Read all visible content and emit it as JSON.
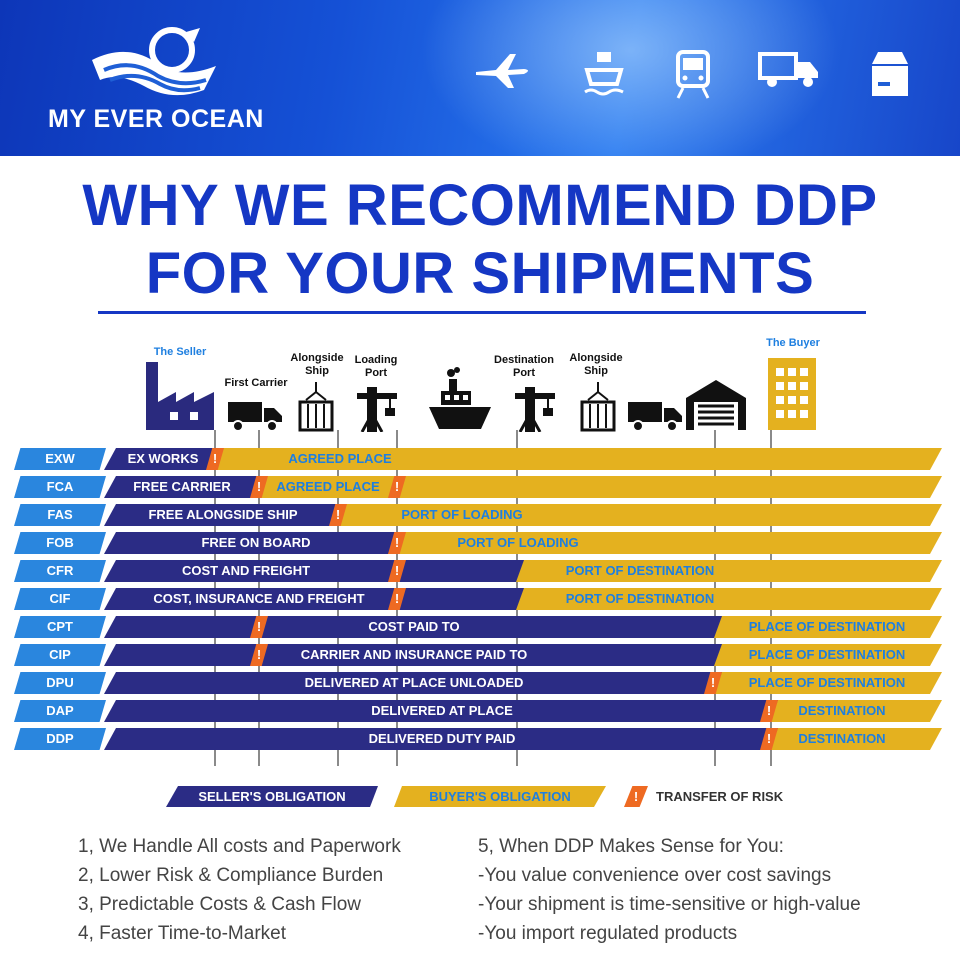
{
  "brand": {
    "name": "MY EVER OCEAN"
  },
  "header_icons": [
    "airplane-icon",
    "ship-icon",
    "train-icon",
    "truck-icon",
    "package-icon"
  ],
  "title": {
    "line1": "WHY WE RECOMMEND DDP",
    "line2": "FOR YOUR SHIPMENTS"
  },
  "stages": {
    "seller": "The Seller",
    "first_carrier": "First Carrier",
    "alongside_ship_1": "Alongside Ship",
    "loading_port": "Loading Port",
    "destination_port": "Destination Port",
    "alongside_ship_2": "Alongside Ship",
    "buyer": "The Buyer"
  },
  "rows": [
    {
      "code": "EXW",
      "seller_text": "EX WORKS",
      "buyer_text": "AGREED PLACE"
    },
    {
      "code": "FCA",
      "seller_text": "FREE CARRIER",
      "buyer_text": "AGREED PLACE"
    },
    {
      "code": "FAS",
      "seller_text": "FREE ALONGSIDE SHIP",
      "buyer_text": "PORT OF LOADING"
    },
    {
      "code": "FOB",
      "seller_text": "FREE ON BOARD",
      "buyer_text": "PORT OF LOADING"
    },
    {
      "code": "CFR",
      "seller_text": "COST AND FREIGHT",
      "buyer_text": "PORT OF DESTINATION"
    },
    {
      "code": "CIF",
      "seller_text": "COST, INSURANCE AND FREIGHT",
      "buyer_text": "PORT OF DESTINATION"
    },
    {
      "code": "CPT",
      "seller_text": "COST PAID TO",
      "buyer_text": "PLACE OF DESTINATION"
    },
    {
      "code": "CIP",
      "seller_text": "CARRIER AND INSURANCE PAID TO",
      "buyer_text": "PLACE OF DESTINATION"
    },
    {
      "code": "DPU",
      "seller_text": "DELIVERED AT PLACE UNLOADED",
      "buyer_text": "PLACE OF DESTINATION"
    },
    {
      "code": "DAP",
      "seller_text": "DELIVERED AT PLACE",
      "buyer_text": "DESTINATION"
    },
    {
      "code": "DDP",
      "seller_text": "DELIVERED DUTY PAID",
      "buyer_text": "DESTINATION"
    }
  ],
  "risk_mark": "!",
  "legend": {
    "seller": "SELLER'S OBLIGATION",
    "buyer": "BUYER'S OBLIGATION",
    "risk": "TRANSFER OF RISK"
  },
  "notes_left": [
    "1, We Handle All costs and Paperwork",
    "2, Lower Risk & Compliance Burden",
    "3, Predictable Costs & Cash Flow",
    "4, Faster Time-to-Market"
  ],
  "notes_right": [
    "5, When DDP Makes Sense for You:",
    "-You value convenience over cost savings",
    "-Your shipment is time-sensitive or high-value",
    "-You import regulated products"
  ],
  "colors": {
    "title_blue": "#1537c4",
    "code_blue": "#2a86de",
    "seller_navy": "#2b2c85",
    "buyer_gold": "#e4b11f",
    "risk_orange": "#ee6a22"
  }
}
